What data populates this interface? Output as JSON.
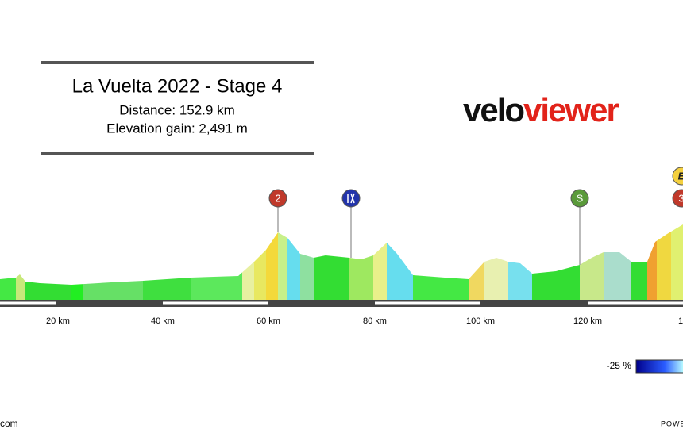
{
  "header": {
    "title": "La Vuelta 2022 - Stage 4",
    "distance": "Distance: 152.9 km",
    "elevation": "Elevation gain: 2,491 m"
  },
  "logo": {
    "velo": "velo",
    "viewer": "viewer"
  },
  "x_labels": [
    "20 km",
    "40 km",
    "60 km",
    "80 km",
    "100 km",
    "120 km",
    "1"
  ],
  "markers": {
    "climb_2": "2",
    "sprint": "S",
    "climb_3": "3",
    "top": "E"
  },
  "legend": {
    "min": "-25 %"
  },
  "footer": {
    "left": "com",
    "right": "POWE"
  }
}
